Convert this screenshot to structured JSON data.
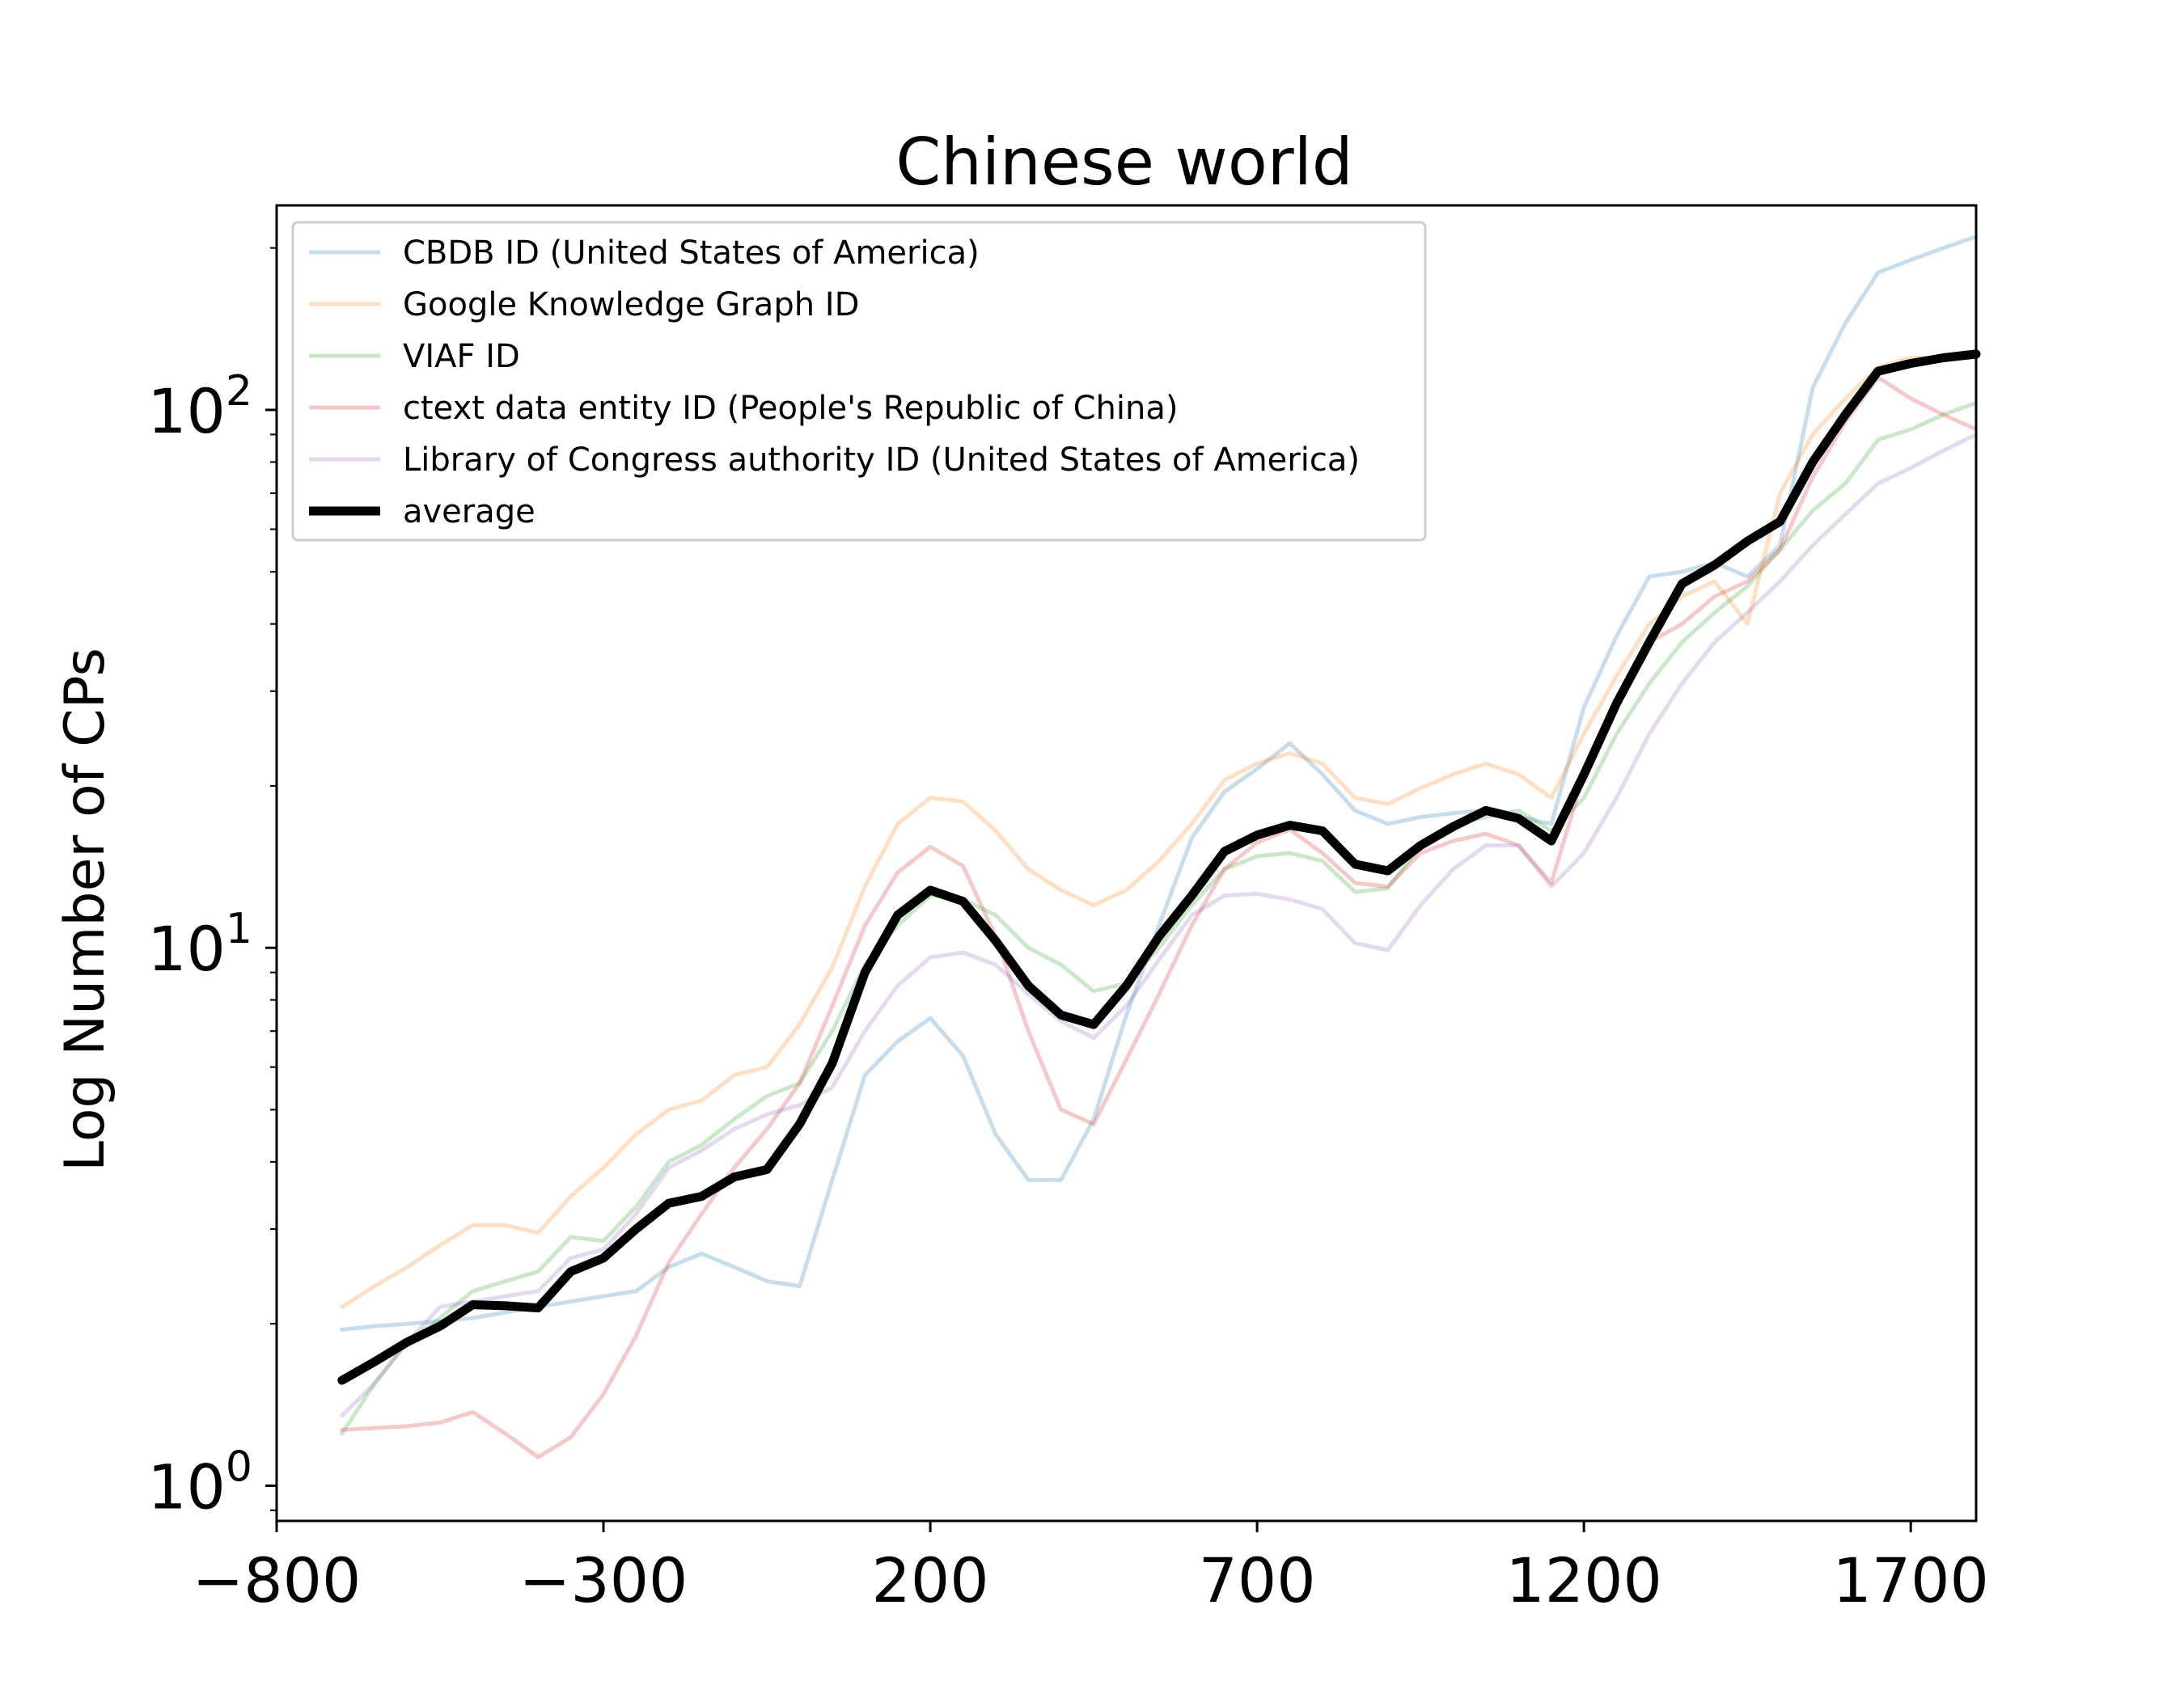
{
  "chart_data": {
    "type": "line",
    "title": "Chinese world",
    "xlabel": "",
    "ylabel": "Log Number of CPs",
    "yscale": "log",
    "xlim": [
      -800,
      1800
    ],
    "ylim": [
      0.86,
      240
    ],
    "xticks": [
      -800,
      -300,
      200,
      700,
      1200,
      1700
    ],
    "xtick_labels": [
      "−800",
      "−300",
      "200",
      "700",
      "1200",
      "1700"
    ],
    "yticks": [
      1,
      10,
      100
    ],
    "ytick_labels": [
      {
        "base": "10",
        "exp": "0"
      },
      {
        "base": "10",
        "exp": "1"
      },
      {
        "base": "10",
        "exp": "2"
      }
    ],
    "legend_position": "upper left",
    "grid": false,
    "x": [
      -700,
      -650,
      -600,
      -550,
      -500,
      -450,
      -400,
      -350,
      -300,
      -250,
      -200,
      -150,
      -100,
      -50,
      0,
      50,
      100,
      150,
      200,
      250,
      300,
      350,
      400,
      450,
      500,
      550,
      600,
      650,
      700,
      750,
      800,
      850,
      900,
      950,
      1000,
      1050,
      1100,
      1150,
      1200,
      1250,
      1300,
      1350,
      1400,
      1450,
      1500,
      1550,
      1600,
      1650,
      1700,
      1750,
      1800
    ],
    "series": [
      {
        "name": "CBDB ID (United States of America)",
        "color": "#1f77b4",
        "opacity": 0.25,
        "width": 5,
        "values": [
          1.95,
          1.98,
          2.0,
          2.02,
          2.05,
          2.1,
          2.15,
          2.2,
          2.25,
          2.3,
          2.55,
          2.7,
          2.55,
          2.4,
          2.35,
          3.7,
          5.8,
          6.7,
          7.4,
          6.3,
          4.5,
          3.7,
          3.7,
          4.8,
          7.5,
          11.0,
          16.0,
          19.5,
          21.5,
          24.0,
          21.0,
          18.0,
          17.0,
          17.5,
          17.8,
          18.0,
          17.5,
          17.0,
          28.0,
          38.0,
          49.0,
          50.0,
          52.0,
          49.0,
          56.0,
          110.0,
          145.0,
          180.0,
          190.0,
          200.0,
          210.0
        ]
      },
      {
        "name": "Google Knowledge Graph ID",
        "color": "#ff7f0e",
        "opacity": 0.25,
        "width": 5,
        "values": [
          2.15,
          2.35,
          2.55,
          2.8,
          3.05,
          3.05,
          2.95,
          3.45,
          3.9,
          4.5,
          5.0,
          5.2,
          5.8,
          6.0,
          7.2,
          9.2,
          13.0,
          17.0,
          19.0,
          18.7,
          16.5,
          14.0,
          12.8,
          12.0,
          12.8,
          14.5,
          17.0,
          20.5,
          22.0,
          23.0,
          22.0,
          19.0,
          18.5,
          19.8,
          21.0,
          22.0,
          21.0,
          19.0,
          25.0,
          32.0,
          40.0,
          45.0,
          48.0,
          40.0,
          70.0,
          90.0,
          105.0,
          120.0,
          125.0,
          125.0,
          125.0
        ]
      },
      {
        "name": "VIAF ID",
        "color": "#2ca02c",
        "opacity": 0.25,
        "width": 5,
        "values": [
          1.25,
          1.55,
          1.85,
          2.05,
          2.3,
          2.4,
          2.5,
          2.9,
          2.85,
          3.3,
          4.0,
          4.3,
          4.8,
          5.3,
          5.6,
          7.0,
          9.3,
          11.0,
          12.5,
          12.3,
          11.5,
          10.0,
          9.3,
          8.3,
          8.6,
          10.0,
          12.0,
          14.0,
          14.8,
          15.0,
          14.5,
          12.7,
          12.9,
          15.5,
          17.0,
          17.5,
          18.0,
          16.5,
          19.0,
          25.0,
          31.0,
          37.0,
          42.0,
          47.0,
          55.0,
          65.0,
          73.0,
          88.0,
          92.0,
          98.0,
          103.0
        ]
      },
      {
        "name": "ctext data entity ID (People's Republic of China)",
        "color": "#d62728",
        "opacity": 0.25,
        "width": 5,
        "values": [
          1.27,
          1.28,
          1.29,
          1.31,
          1.37,
          1.25,
          1.13,
          1.23,
          1.48,
          1.9,
          2.6,
          3.2,
          3.9,
          4.6,
          5.6,
          7.8,
          11.0,
          13.8,
          15.4,
          14.2,
          10.5,
          7.0,
          5.0,
          4.7,
          6.2,
          8.2,
          11.0,
          14.0,
          15.7,
          16.6,
          15.0,
          13.2,
          13.0,
          15.0,
          15.8,
          16.3,
          15.5,
          13.2,
          21.0,
          28.0,
          37.0,
          40.0,
          45.0,
          48.0,
          55.0,
          75.0,
          95.0,
          115.0,
          105.0,
          98.0,
          92.0
        ]
      },
      {
        "name": "Library of Congress authority ID (United States of America)",
        "color": "#9467bd",
        "opacity": 0.25,
        "width": 5,
        "values": [
          1.35,
          1.55,
          1.85,
          2.15,
          2.2,
          2.25,
          2.3,
          2.65,
          2.75,
          3.2,
          3.9,
          4.2,
          4.6,
          4.9,
          5.1,
          5.5,
          7.0,
          8.5,
          9.6,
          9.8,
          9.3,
          8.2,
          7.3,
          6.8,
          7.8,
          9.5,
          11.5,
          12.5,
          12.6,
          12.3,
          11.8,
          10.2,
          9.9,
          12.0,
          14.0,
          15.5,
          15.5,
          13.0,
          15.0,
          19.0,
          25.0,
          31.0,
          37.0,
          42.0,
          48.0,
          56.0,
          64.0,
          73.0,
          78.0,
          84.0,
          90.0
        ]
      },
      {
        "name": "average",
        "color": "#000000",
        "opacity": 1,
        "width": 11,
        "values": [
          1.57,
          1.7,
          1.85,
          1.98,
          2.17,
          2.16,
          2.14,
          2.5,
          2.65,
          3.0,
          3.35,
          3.45,
          3.75,
          3.87,
          4.7,
          6.1,
          9.0,
          11.5,
          12.8,
          12.2,
          10.3,
          8.5,
          7.5,
          7.2,
          8.5,
          10.5,
          12.5,
          15.1,
          16.2,
          16.9,
          16.5,
          14.3,
          13.9,
          15.5,
          16.8,
          18.0,
          17.4,
          15.8,
          21.0,
          28.5,
          37.0,
          47.5,
          51.5,
          57.0,
          62.0,
          80.0,
          98.0,
          118.0,
          122.0,
          125.0,
          127.0
        ]
      }
    ]
  }
}
